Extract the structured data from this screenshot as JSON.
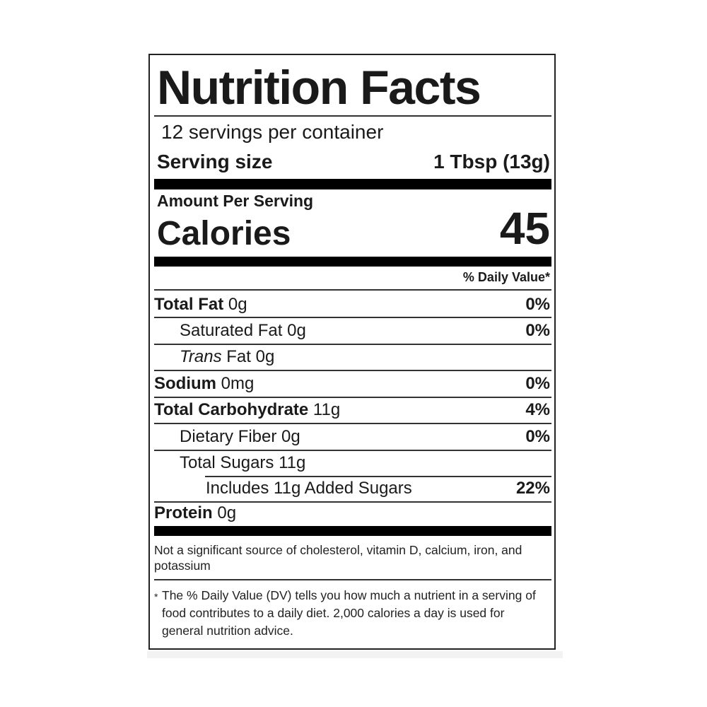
{
  "title": "Nutrition Facts",
  "servings_per_container": "12 servings per container",
  "serving_size": {
    "label": "Serving size",
    "value": "1 Tbsp (13g)"
  },
  "amount_per_serving": "Amount Per Serving",
  "calories": {
    "label": "Calories",
    "value": "45"
  },
  "daily_value_header": "% Daily Value*",
  "nutrients": [
    {
      "name": "Total Fat",
      "amount": "0g",
      "dv": "0%"
    },
    {
      "name": "Saturated Fat",
      "amount": "0g",
      "dv": "0%"
    },
    {
      "name": "Trans",
      "name_suffix": "Fat",
      "amount": "0g",
      "dv": ""
    },
    {
      "name": "Sodium",
      "amount": "0mg",
      "dv": "0%"
    },
    {
      "name": "Total Carbohydrate",
      "amount": "11g",
      "dv": "4%"
    },
    {
      "name": "Dietary Fiber",
      "amount": "0g",
      "dv": "0%"
    },
    {
      "name": "Total Sugars",
      "amount": "11g",
      "dv": ""
    },
    {
      "name": "Includes 11g Added Sugars",
      "amount": "",
      "dv": "22%"
    },
    {
      "name": "Protein",
      "amount": "0g",
      "dv": ""
    }
  ],
  "not_significant": "Not a significant source of cholesterol, vitamin D, calcium, iron, and potassium",
  "footnote_star": "*",
  "footnote": "The % Daily Value (DV) tells you how much a nutrient in a serving of food contributes to a daily diet. 2,000 calories a day is used for general nutrition advice."
}
